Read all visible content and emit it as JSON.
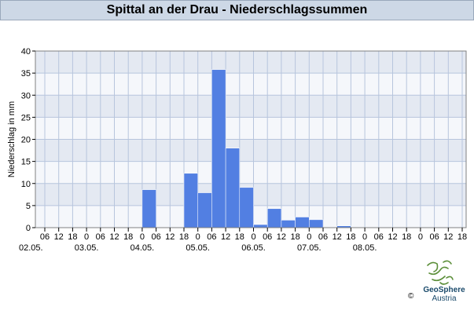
{
  "header": {
    "title": "Spittal an der Drau - Niederschlagssummen"
  },
  "chart_data": {
    "type": "bar",
    "title": "Spittal an der Drau - Niederschlagssummen",
    "ylabel": "Niederschlag in mm",
    "xlabel": "",
    "ylim": [
      0,
      40
    ],
    "y_ticks": [
      0,
      5,
      10,
      15,
      20,
      25,
      30,
      35,
      40
    ],
    "grid": true,
    "hour_ticks": [
      "06",
      "12",
      "18",
      "0",
      "06",
      "12",
      "18",
      "0",
      "06",
      "12",
      "18",
      "0",
      "06",
      "12",
      "18",
      "0",
      "06",
      "12",
      "18",
      "0",
      "06",
      "12",
      "18",
      "0",
      "06",
      "12",
      "18",
      "0",
      "06",
      "12",
      "18"
    ],
    "date_labels": [
      "02.05.",
      "03.05.",
      "04.05.",
      "05.05.",
      "06.05.",
      "07.05.",
      "08.05."
    ],
    "bars": [
      {
        "start": "04.05. 0",
        "end": "04.05. 06",
        "value": 8.6
      },
      {
        "start": "04.05. 18",
        "end": "05.05. 0",
        "value": 12.3
      },
      {
        "start": "05.05. 0",
        "end": "05.05. 06",
        "value": 7.9
      },
      {
        "start": "05.05. 06",
        "end": "05.05. 12",
        "value": 35.8
      },
      {
        "start": "05.05. 12",
        "end": "05.05. 18",
        "value": 18.0
      },
      {
        "start": "05.05. 18",
        "end": "06.05. 0",
        "value": 9.1
      },
      {
        "start": "06.05. 0",
        "end": "06.05. 06",
        "value": 0.7
      },
      {
        "start": "06.05. 06",
        "end": "06.05. 12",
        "value": 4.3
      },
      {
        "start": "06.05. 12",
        "end": "06.05. 18",
        "value": 1.7
      },
      {
        "start": "06.05. 18",
        "end": "07.05. 0",
        "value": 2.4
      },
      {
        "start": "07.05. 0",
        "end": "07.05. 06",
        "value": 1.8
      },
      {
        "start": "07.05. 12",
        "end": "07.05. 18",
        "value": 0.4
      }
    ],
    "colors": {
      "bar": "#527fe2",
      "band_dark": "#e4e9f2",
      "band_light": "#f5f7fb",
      "grid": "#b7c5dd"
    }
  },
  "footer": {
    "logo_name": "GeoSphere",
    "logo_sub": "Austria",
    "copyright": "©"
  }
}
